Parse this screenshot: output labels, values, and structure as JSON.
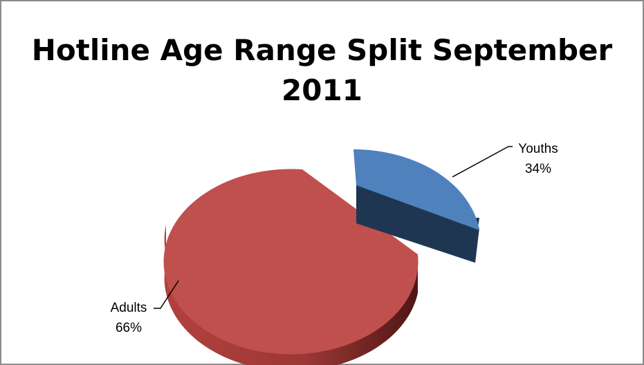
{
  "chart_data": {
    "type": "pie",
    "title_lines": [
      "Hotline Age Range Split September",
      "2011"
    ],
    "slices": [
      {
        "label": "Youths",
        "percent_label": "34%",
        "value": 34,
        "top_color": "#4f81bd",
        "side_color": "#1f3652"
      },
      {
        "label": "Adults",
        "percent_label": "66%",
        "value": 66,
        "top_color": "#c0504d",
        "side_color": "#7a2826"
      }
    ],
    "legend": "none",
    "three_d": true,
    "exploded": true
  }
}
